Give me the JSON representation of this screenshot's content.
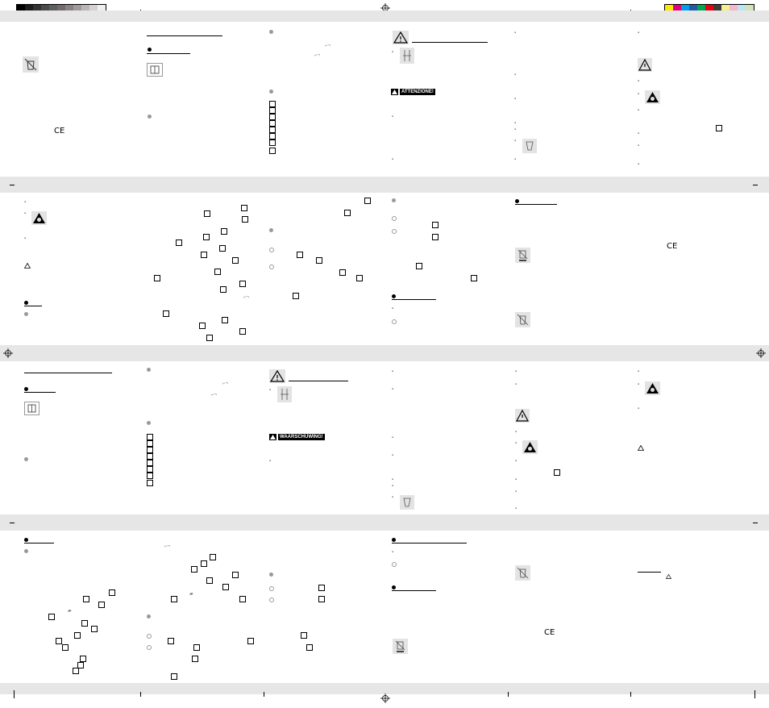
{
  "color_bar": {
    "grays": [
      "#000000",
      "#1c1c1c",
      "#333333",
      "#4a4a4a",
      "#5e5e5e",
      "#726a6e",
      "#8a8085",
      "#a19a9d",
      "#bab5b7",
      "#d4d1d2",
      "#efefef"
    ],
    "process": [
      "#ffe600",
      "#e4007c",
      "#00a0e9",
      "#1e5aa8",
      "#00a651",
      "#e60012",
      "#3d3a39",
      "#f4ef90",
      "#f5b6cf",
      "#bde3f5",
      "#cfe3b8"
    ]
  },
  "sections": {
    "page1_badge": "ATTENZIONE!",
    "page3_badge": "WAARSCHUWING!"
  },
  "marks": {
    "ce": "CE"
  },
  "icons": [
    "warning-icon",
    "explosion-icon",
    "broken-fuse-icon",
    "no-trash-icon",
    "crossed-bin-icon",
    "manual-icon",
    "recycle-icon"
  ]
}
